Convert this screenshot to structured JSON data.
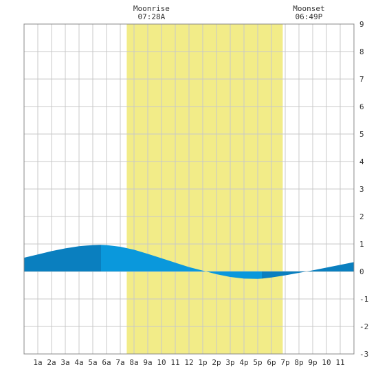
{
  "chart_data": {
    "type": "area",
    "title": "",
    "xlabel": "",
    "ylabel": "",
    "xlim": [
      0,
      24
    ],
    "ylim": [
      -3,
      9
    ],
    "grid": true,
    "x_tick_labels": [
      "1a",
      "2a",
      "3a",
      "4a",
      "5a",
      "6a",
      "7a",
      "8a",
      "9a",
      "10",
      "11",
      "12",
      "1p",
      "2p",
      "3p",
      "4p",
      "5p",
      "6p",
      "7p",
      "8p",
      "9p",
      "10",
      "11"
    ],
    "y_ticks": [
      -3,
      -2,
      -1,
      0,
      1,
      2,
      3,
      4,
      5,
      6,
      7,
      8,
      9
    ],
    "moon": {
      "rise_label": "Moonrise",
      "rise_time": "07:28A",
      "rise_hour": 7.47,
      "set_label": "Moonset",
      "set_time": "06:49P",
      "set_hour": 18.82,
      "shade_color": "#f2ec88"
    },
    "tide_colors": {
      "dark": "#0a7fbf",
      "light": "#0a98dc"
    },
    "shade_bands": [
      [
        0,
        5.6,
        "dark"
      ],
      [
        5.6,
        17.3,
        "light"
      ],
      [
        17.3,
        24,
        "dark"
      ]
    ],
    "series": [
      {
        "x": [
          0,
          1,
          2,
          3,
          4,
          5,
          5.5,
          6,
          7,
          8,
          9,
          10,
          11,
          12,
          13,
          14,
          15,
          16,
          17,
          17.3,
          18,
          19,
          20,
          21,
          22,
          23,
          24
        ],
        "values": [
          0.5,
          0.62,
          0.74,
          0.84,
          0.92,
          0.96,
          0.97,
          0.96,
          0.9,
          0.79,
          0.64,
          0.48,
          0.32,
          0.16,
          0.03,
          -0.1,
          -0.2,
          -0.26,
          -0.27,
          -0.26,
          -0.22,
          -0.14,
          -0.05,
          0.04,
          0.14,
          0.24,
          0.34
        ]
      }
    ]
  }
}
